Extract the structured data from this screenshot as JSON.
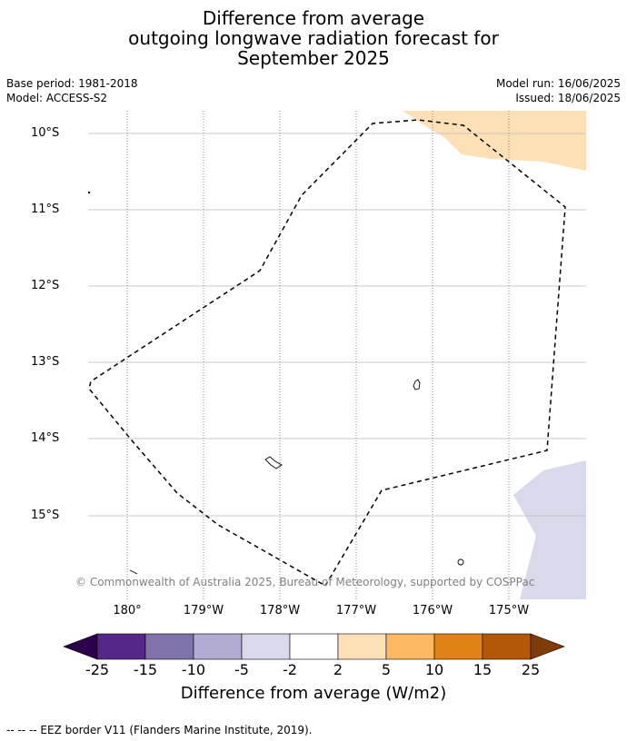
{
  "title": {
    "line1": "Difference from average",
    "line2": "outgoing longwave radiation forecast for",
    "line3": "September 2025"
  },
  "meta": {
    "base_period": "Base period: 1981-2018",
    "model": "Model: ACCESS-S2",
    "model_run": "Model run: 16/06/2025",
    "issued": "Issued: 18/06/2025"
  },
  "map": {
    "lat_labels": [
      "10°S",
      "11°S",
      "12°S",
      "13°S",
      "14°S",
      "15°S"
    ],
    "lon_labels": [
      "180°",
      "179°W",
      "178°W",
      "177°W",
      "176°W",
      "175°W"
    ],
    "credit": "© Commonwealth of Australia 2025, Bureau of Meteorology, supported by COSPPac",
    "anomaly_fill": {
      "positive_2_to_5": "#fee0b6",
      "negative_-5_to_-2": "#d8daeb"
    }
  },
  "colorbar": {
    "title": "Difference from average (W/m2)",
    "ticks": [
      "-25",
      "-15",
      "-10",
      "-5",
      "-2",
      "2",
      "5",
      "10",
      "15",
      "25"
    ],
    "colors": [
      "#2d004b",
      "#542788",
      "#8073ac",
      "#b2abd2",
      "#d8daeb",
      "#ffffff",
      "#fee0b6",
      "#fdb863",
      "#e08214",
      "#b35806",
      "#7f3b08"
    ]
  },
  "footnote": "--  --  -- EEZ border V11 (Flanders Marine Institute, 2019)."
}
